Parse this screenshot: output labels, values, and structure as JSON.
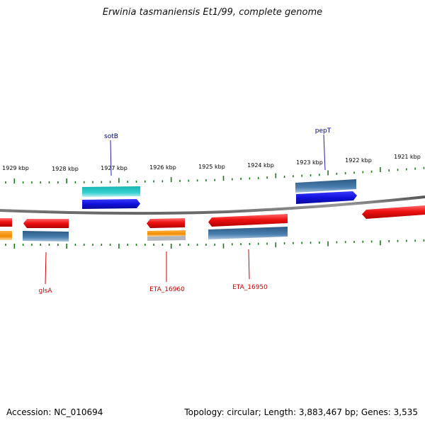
{
  "title": "Erwinia tasmaniensis Et1/99, complete genome",
  "footer": {
    "accession": "Accession: NC_010694",
    "topology": "Topology: circular; Length: 3,883,467 bp; Genes: 3,535"
  },
  "colors": {
    "red": "#ee1111",
    "steel": "#3d6f9f",
    "cyan": "#22c4c4",
    "blue": "#1111dd",
    "orange": "#f08c00",
    "backbone": "#888888",
    "tick": "#1a7a1a",
    "label_top": "#000080",
    "label_bottom": "#cc0000"
  },
  "scale_labels": [
    "1929 kbp",
    "1928 kbp",
    "1927 kbp",
    "1926 kbp",
    "1925 kbp",
    "1924 kbp",
    "1923 kbp",
    "1922 kbp",
    "1921 kbp"
  ],
  "gene_labels_top": [
    "sotB",
    "pepT"
  ],
  "gene_labels_bottom": [
    "glsA",
    "ETA_16960",
    "ETA_16950"
  ]
}
